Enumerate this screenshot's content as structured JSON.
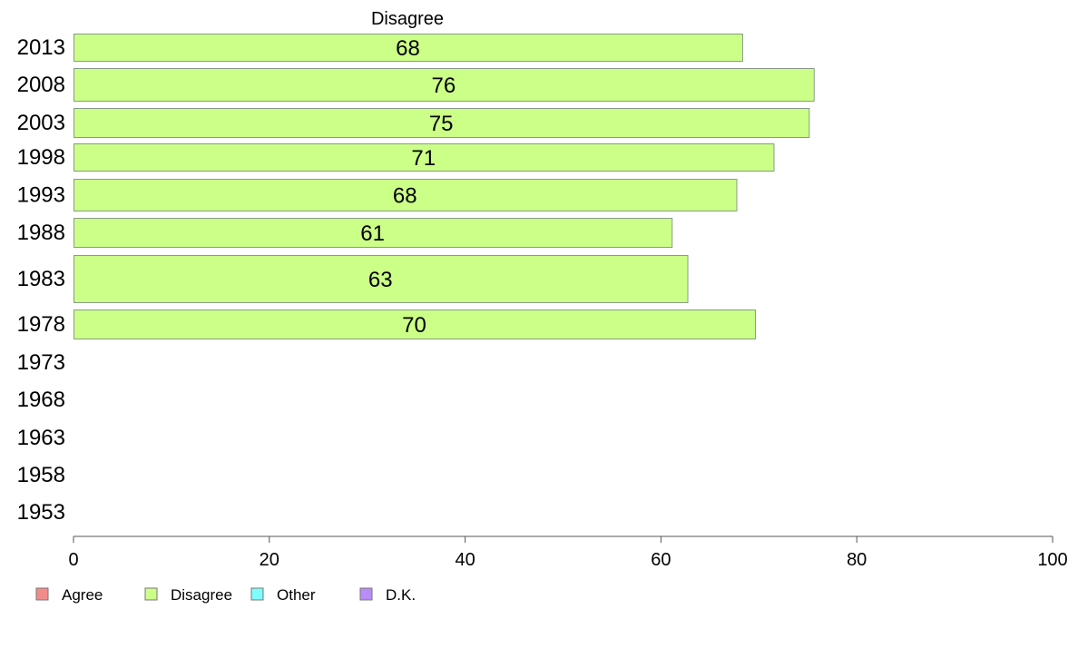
{
  "chart_data": {
    "type": "bar",
    "orientation": "horizontal",
    "title": "Disagree",
    "categories": [
      "2013",
      "2008",
      "2003",
      "1998",
      "1993",
      "1988",
      "1983",
      "1978",
      "1973",
      "1968",
      "1963",
      "1958",
      "1953"
    ],
    "series": [
      {
        "name": "Disagree",
        "color": "#ccff88",
        "values": [
          68.3,
          75.6,
          75.1,
          71.5,
          67.7,
          61.1,
          62.7,
          69.6,
          null,
          null,
          null,
          null,
          null
        ],
        "labels": [
          "68",
          "76",
          "75",
          "71",
          "68",
          "61",
          "63",
          "70",
          "",
          "",
          "",
          "",
          ""
        ]
      }
    ],
    "xlim": [
      0,
      100
    ],
    "xticks": [
      "0",
      "20",
      "40",
      "60",
      "80",
      "100"
    ],
    "grid": false,
    "legend": {
      "placement": "bottom-left",
      "items": [
        {
          "label": "Agree",
          "color": "#f58a8a"
        },
        {
          "label": "Disagree",
          "color": "#ccff88"
        },
        {
          "label": "Other",
          "color": "#7ffcfc"
        },
        {
          "label": "D.K.",
          "color": "#b98cf7"
        }
      ]
    }
  }
}
